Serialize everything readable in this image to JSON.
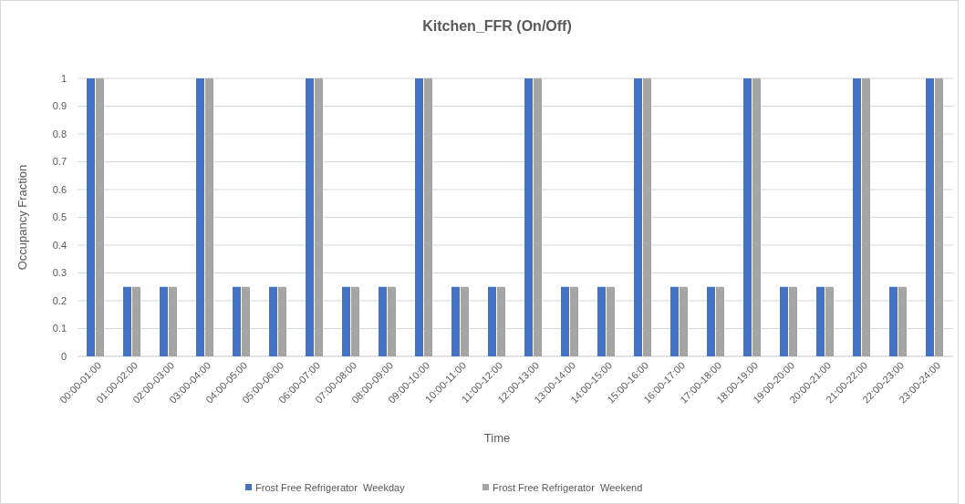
{
  "chart_data": {
    "type": "bar",
    "title": "Kitchen_FFR (On/Off)",
    "xlabel": "Time",
    "ylabel": "Occupancy Fraction",
    "categories": [
      "00:00-01:00",
      "01:00-02:00",
      "02:00-03:00",
      "03:00-04:00",
      "04:00-05:00",
      "05:00-06:00",
      "06:00-07:00",
      "07:00-08:00",
      "08:00-09:00",
      "09:00-10:00",
      "10:00-11:00",
      "11:00-12:00",
      "12:00-13:00",
      "13:00-14:00",
      "14:00-15:00",
      "15:00-16:00",
      "16:00-17:00",
      "17:00-18:00",
      "18:00-19:00",
      "19:00-20:00",
      "20:00-21:00",
      "21:00-22:00",
      "22:00-23:00",
      "23:00-24:00"
    ],
    "series": [
      {
        "name": "Frost Free Refrigerator  Weekday",
        "color": "#4472c4",
        "values": [
          1,
          0.25,
          0.25,
          1,
          0.25,
          0.25,
          1,
          0.25,
          0.25,
          1,
          0.25,
          0.25,
          1,
          0.25,
          0.25,
          1,
          0.25,
          0.25,
          1,
          0.25,
          0.25,
          1,
          0.25,
          1
        ]
      },
      {
        "name": "Frost Free Refrigerator  Weekend",
        "color": "#a5a5a5",
        "values": [
          1,
          0.25,
          0.25,
          1,
          0.25,
          0.25,
          1,
          0.25,
          0.25,
          1,
          0.25,
          0.25,
          1,
          0.25,
          0.25,
          1,
          0.25,
          0.25,
          1,
          0.25,
          0.25,
          1,
          0.25,
          1
        ]
      }
    ],
    "ylim": [
      0,
      1
    ],
    "yticks": [
      0,
      0.1,
      0.2,
      0.3,
      0.4,
      0.5,
      0.6,
      0.7,
      0.8,
      0.9,
      1
    ],
    "grid": "y",
    "legend": "bottom"
  }
}
